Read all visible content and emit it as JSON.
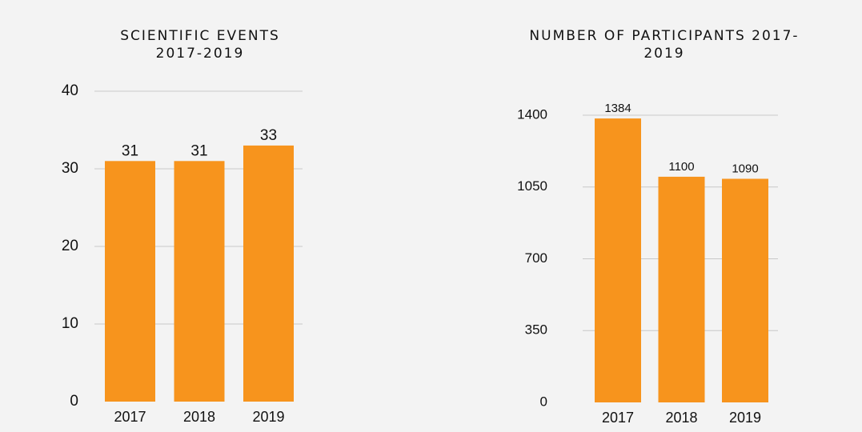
{
  "chart_data": [
    {
      "type": "bar",
      "title": "SCIENTIFIC EVENTS 2017-2019",
      "categories": [
        "2017",
        "2018",
        "2019"
      ],
      "values": [
        31,
        31,
        33
      ],
      "color": "#f7941d",
      "ylim": [
        0,
        40
      ],
      "yticks": [
        0,
        10,
        20,
        30,
        40
      ],
      "grid": true
    },
    {
      "type": "bar",
      "title": "NUMBER OF PARTICIPANTS 2017-2019",
      "categories": [
        "2017",
        "2018",
        "2019"
      ],
      "values": [
        1384,
        1100,
        1090
      ],
      "color": "#f7941d",
      "ylim": [
        0,
        1400
      ],
      "yticks": [
        0,
        350,
        700,
        1050,
        1400
      ],
      "grid": true
    }
  ]
}
